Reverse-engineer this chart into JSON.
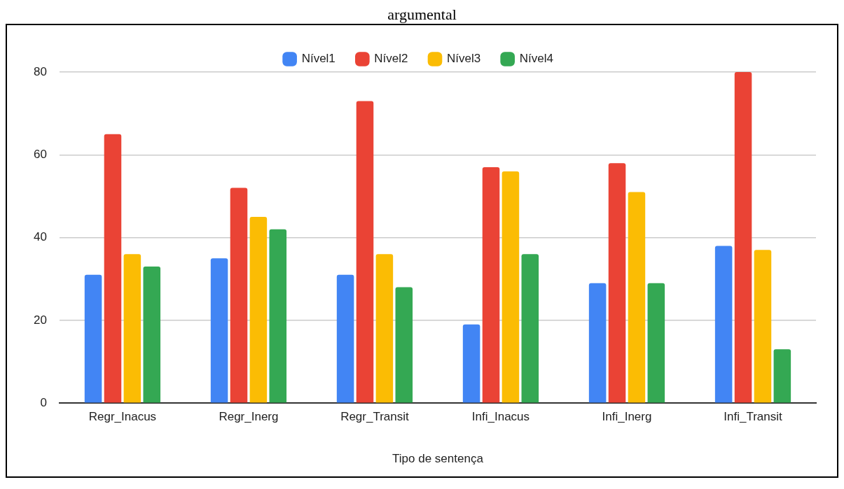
{
  "chart_data": {
    "type": "bar",
    "title": "argumental",
    "xlabel": "Tipo de sentença",
    "categories": [
      "Regr_Inacus",
      "Regr_Inerg",
      "Regr_Transit",
      "Infi_Inacus",
      "Infi_Inerg",
      "Infi_Transit"
    ],
    "series": [
      {
        "name": "Nível1",
        "color": "#4285f4",
        "values": [
          31,
          35,
          31,
          19,
          29,
          38
        ]
      },
      {
        "name": "Nível2",
        "color": "#ea4335",
        "values": [
          65,
          52,
          73,
          57,
          58,
          80
        ]
      },
      {
        "name": "Nível3",
        "color": "#fbbc04",
        "values": [
          36,
          45,
          36,
          56,
          51,
          37
        ]
      },
      {
        "name": "Nível4",
        "color": "#34a853",
        "values": [
          33,
          42,
          28,
          36,
          29,
          13
        ]
      }
    ],
    "ylim": [
      0,
      80
    ],
    "yticks": [
      0,
      20,
      40,
      60,
      80
    ],
    "grid": "y",
    "legend": "top"
  }
}
